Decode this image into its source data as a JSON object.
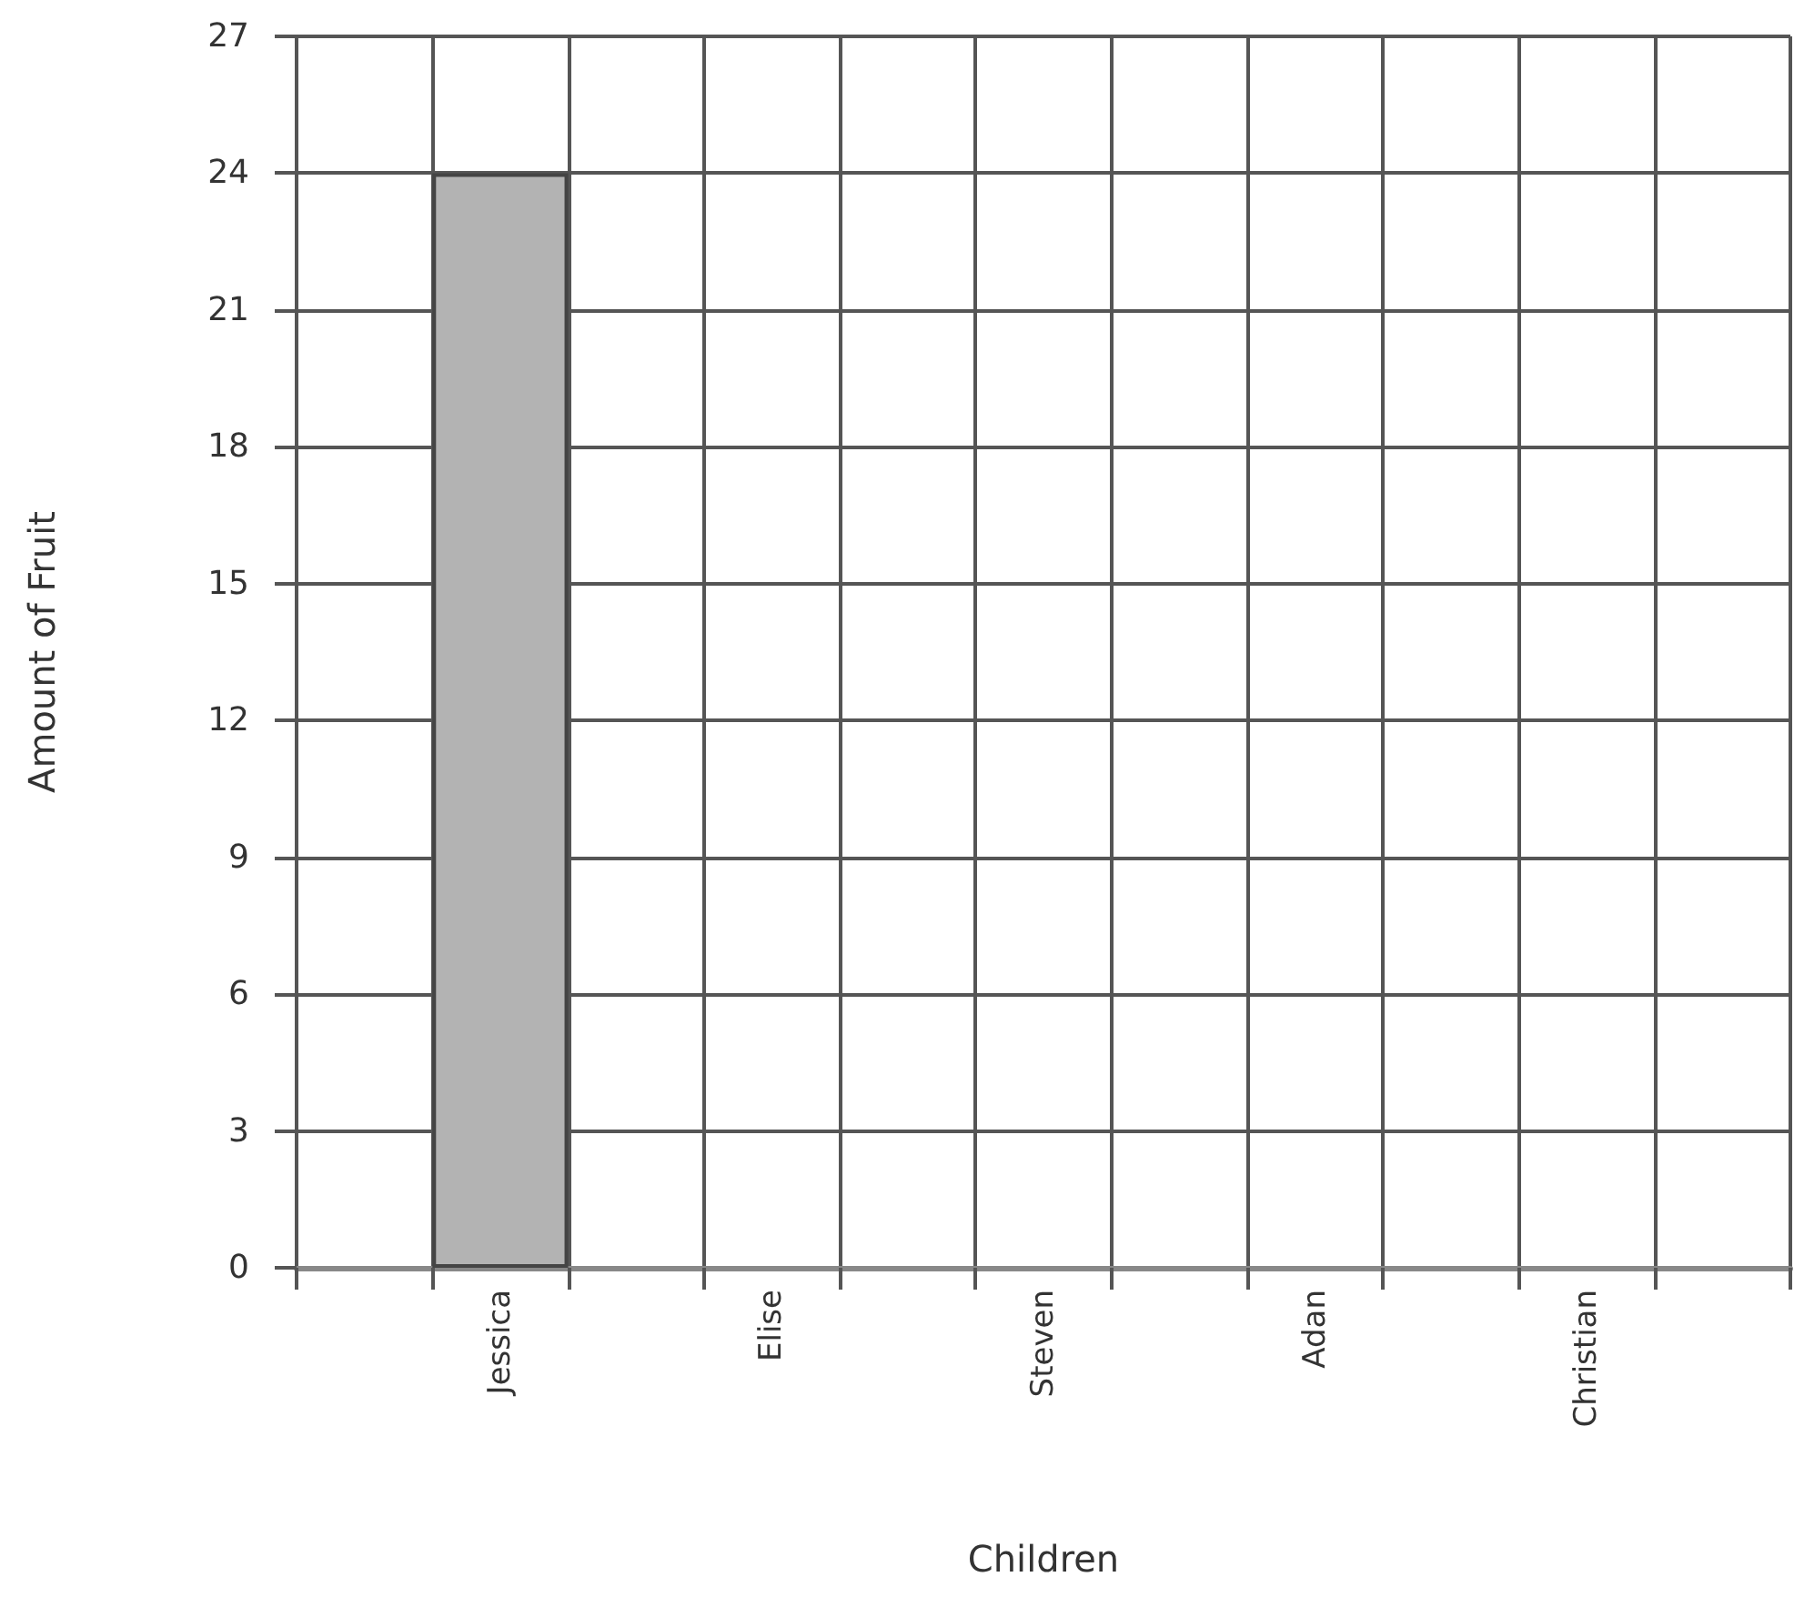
{
  "chart_data": {
    "type": "bar",
    "xlabel": "Children",
    "ylabel": "Amount of Fruit",
    "categories": [
      null,
      "Jessica",
      null,
      "Elise",
      null,
      "Steven",
      null,
      "Adan",
      null,
      "Christian",
      null
    ],
    "values": [
      null,
      24,
      null,
      null,
      null,
      null,
      null,
      null,
      null,
      null,
      null
    ],
    "color": "#b3b3b3",
    "ylim": [
      0,
      27
    ],
    "yticks": [
      0,
      3,
      6,
      9,
      12,
      15,
      18,
      21,
      24,
      27
    ],
    "grid": true
  }
}
